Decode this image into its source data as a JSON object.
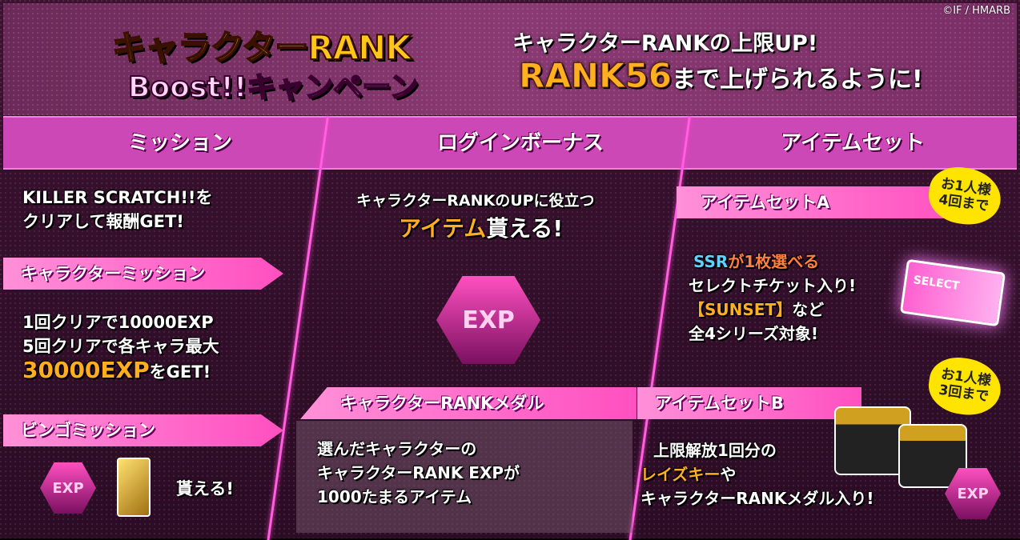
{
  "copyright": "©IF / HMARB",
  "logo": {
    "line1": "キャラクターRANK",
    "line2": "Boost!!キャンペーン"
  },
  "headline": {
    "line1": "キャラクターRANKの上限UP!",
    "rank": "RANK56",
    "line2_rest": "まで上げられるように!"
  },
  "tabs": [
    "ミッション",
    "ログインボーナス",
    "アイテムセット"
  ],
  "mission": {
    "intro": [
      "KILLER SCRATCH!!を",
      "クリアして報酬GET!"
    ],
    "character_mission": {
      "title": "キャラクターミッション",
      "lines": [
        "1回クリアで10000EXP",
        "5回クリアで各キャラ最大"
      ],
      "highlight": "30000EXP",
      "highlight_rest": "をGET!"
    },
    "bingo": {
      "title": "ビンゴミッション",
      "exp_icon": "EXP",
      "text": "貰える!"
    }
  },
  "login": {
    "line1": "キャラクターRANKのUPに役立つ",
    "highlight": "アイテム",
    "line2_rest": "貰える!",
    "medal_label": "EXP",
    "medal": {
      "title": "キャラクターRANKメダル",
      "lines": [
        "選んだキャラクターの",
        "キャラクターRANK EXPが",
        "1000たまるアイテム"
      ]
    }
  },
  "itemset": {
    "a": {
      "title": "アイテムセットA",
      "badge": [
        "お1人様",
        "4回まで"
      ],
      "ssr": "SSR",
      "rest1": "が1枚選べる",
      "lines": [
        "セレクトチケット入り!"
      ],
      "sunset": "【SUNSET】",
      "sunset_rest": "など",
      "last": "全4シリーズ対象!",
      "ticket_text": "SELECT"
    },
    "b": {
      "title": "アイテムセットB",
      "badge": [
        "お1人様",
        "3回まで"
      ],
      "line1": "上限解放1回分の",
      "highlight": "レイズキー",
      "highlight_rest": "や",
      "line3": "キャラクターRANKメダル入り!",
      "exp_icon": "EXP"
    }
  },
  "colors": {
    "accent": "#cc48b6",
    "highlight": "#ffae20",
    "badge": "#ffe400"
  }
}
